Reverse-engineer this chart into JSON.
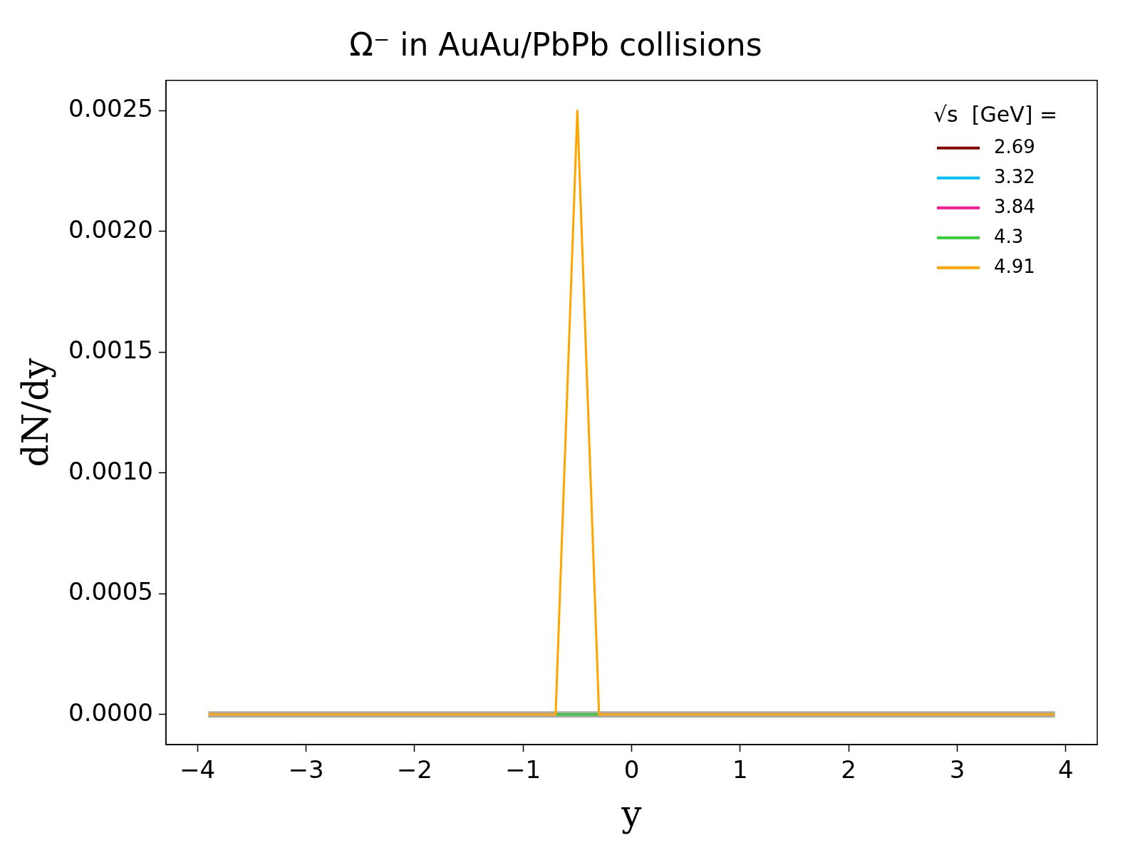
{
  "chart_data": {
    "type": "line",
    "title": "Ω⁻ in AuAu/PbPb collisions",
    "xlabel": "y",
    "ylabel": "dN/dy",
    "legend_title": "√s  [GeV] =",
    "legend": "top right",
    "grid": false,
    "marker": "none",
    "line_style": "solid",
    "xlim": [
      -4.29,
      4.29
    ],
    "ylim": [
      -0.000125,
      0.002625
    ],
    "xticks": [
      {
        "value": -4,
        "label": "−4"
      },
      {
        "value": -3,
        "label": "−3"
      },
      {
        "value": -2,
        "label": "−2"
      },
      {
        "value": -1,
        "label": "−1"
      },
      0,
      1,
      2,
      3,
      4
    ],
    "yticks": [
      {
        "value": 0,
        "label": "0.0000"
      },
      {
        "value": 0.0005,
        "label": "0.0005"
      },
      {
        "value": 0.001,
        "label": "0.0010"
      },
      {
        "value": 0.0015,
        "label": "0.0015"
      },
      {
        "value": 0.002,
        "label": "0.0020"
      },
      {
        "value": 0.0025,
        "label": "0.0025"
      }
    ],
    "series": [
      {
        "color": "#aaaaaa",
        "x": [
          -3.9,
          3.9
        ],
        "values": [
          0,
          0
        ]
      },
      {
        "name": "2.69",
        "color": "#8b0000"
      },
      {
        "name": "3.32",
        "color": "#00bfff"
      },
      {
        "name": "3.84",
        "color": "#ff1493"
      },
      {
        "name": "4.3",
        "color": "#32cd32",
        "x": [
          -0.7,
          -0.3
        ],
        "values": [
          0,
          0
        ]
      },
      {
        "name": "4.91",
        "color": "#ffa500",
        "x": [
          -3.9,
          -0.7,
          -0.5,
          -0.3,
          3.9
        ],
        "values": [
          0,
          0,
          0.0025,
          0,
          0
        ]
      }
    ]
  }
}
